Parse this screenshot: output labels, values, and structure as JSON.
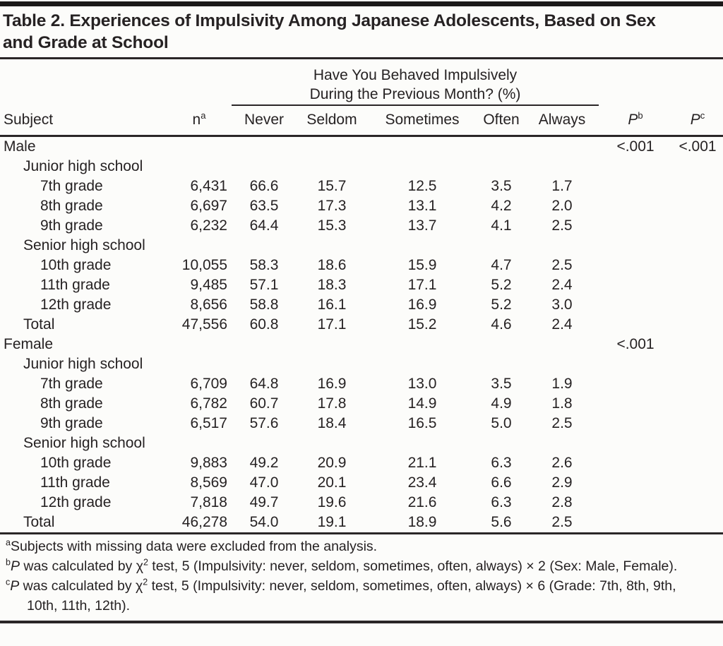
{
  "title": {
    "line1": "Table 2. Experiences of Impulsivity Among Japanese Adolescents, Based on Sex",
    "line2": "and Grade at School"
  },
  "table": {
    "group_header": {
      "line1": "Have You Behaved Impulsively",
      "line2": "During the Previous Month? (%)"
    },
    "columns": {
      "subject": "Subject",
      "n": "n",
      "n_sup": "a",
      "responses": [
        "Never",
        "Seldom",
        "Sometimes",
        "Often",
        "Always"
      ],
      "p": "P",
      "p_b_sup": "b",
      "p_c_sup": "c"
    },
    "rows": [
      {
        "label": "Male",
        "indent": 0,
        "n": "",
        "pct": [
          "",
          "",
          "",
          "",
          ""
        ],
        "p_b": "<.001",
        "p_c": "<.001"
      },
      {
        "label": "Junior high school",
        "indent": 1,
        "n": "",
        "pct": [
          "",
          "",
          "",
          "",
          ""
        ],
        "p_b": "",
        "p_c": ""
      },
      {
        "label": "7th grade",
        "indent": 2,
        "n": "6,431",
        "pct": [
          "66.6",
          "15.7",
          "12.5",
          "3.5",
          "1.7"
        ],
        "p_b": "",
        "p_c": ""
      },
      {
        "label": "8th grade",
        "indent": 2,
        "n": "6,697",
        "pct": [
          "63.5",
          "17.3",
          "13.1",
          "4.2",
          "2.0"
        ],
        "p_b": "",
        "p_c": ""
      },
      {
        "label": "9th grade",
        "indent": 2,
        "n": "6,232",
        "pct": [
          "64.4",
          "15.3",
          "13.7",
          "4.1",
          "2.5"
        ],
        "p_b": "",
        "p_c": ""
      },
      {
        "label": "Senior high school",
        "indent": 1,
        "n": "",
        "pct": [
          "",
          "",
          "",
          "",
          ""
        ],
        "p_b": "",
        "p_c": ""
      },
      {
        "label": "10th grade",
        "indent": 2,
        "n": "10,055",
        "pct": [
          "58.3",
          "18.6",
          "15.9",
          "4.7",
          "2.5"
        ],
        "p_b": "",
        "p_c": ""
      },
      {
        "label": "11th grade",
        "indent": 2,
        "n": "9,485",
        "pct": [
          "57.1",
          "18.3",
          "17.1",
          "5.2",
          "2.4"
        ],
        "p_b": "",
        "p_c": ""
      },
      {
        "label": "12th grade",
        "indent": 2,
        "n": "8,656",
        "pct": [
          "58.8",
          "16.1",
          "16.9",
          "5.2",
          "3.0"
        ],
        "p_b": "",
        "p_c": ""
      },
      {
        "label": "Total",
        "indent": 1,
        "n": "47,556",
        "pct": [
          "60.8",
          "17.1",
          "15.2",
          "4.6",
          "2.4"
        ],
        "p_b": "",
        "p_c": ""
      },
      {
        "label": "Female",
        "indent": 0,
        "n": "",
        "pct": [
          "",
          "",
          "",
          "",
          ""
        ],
        "p_b": "<.001",
        "p_c": ""
      },
      {
        "label": "Junior high school",
        "indent": 1,
        "n": "",
        "pct": [
          "",
          "",
          "",
          "",
          ""
        ],
        "p_b": "",
        "p_c": ""
      },
      {
        "label": "7th grade",
        "indent": 2,
        "n": "6,709",
        "pct": [
          "64.8",
          "16.9",
          "13.0",
          "3.5",
          "1.9"
        ],
        "p_b": "",
        "p_c": ""
      },
      {
        "label": "8th grade",
        "indent": 2,
        "n": "6,782",
        "pct": [
          "60.7",
          "17.8",
          "14.9",
          "4.9",
          "1.8"
        ],
        "p_b": "",
        "p_c": ""
      },
      {
        "label": "9th grade",
        "indent": 2,
        "n": "6,517",
        "pct": [
          "57.6",
          "18.4",
          "16.5",
          "5.0",
          "2.5"
        ],
        "p_b": "",
        "p_c": ""
      },
      {
        "label": "Senior high school",
        "indent": 1,
        "n": "",
        "pct": [
          "",
          "",
          "",
          "",
          ""
        ],
        "p_b": "",
        "p_c": ""
      },
      {
        "label": "10th grade",
        "indent": 2,
        "n": "9,883",
        "pct": [
          "49.2",
          "20.9",
          "21.1",
          "6.3",
          "2.6"
        ],
        "p_b": "",
        "p_c": ""
      },
      {
        "label": "11th grade",
        "indent": 2,
        "n": "8,569",
        "pct": [
          "47.0",
          "20.1",
          "23.4",
          "6.6",
          "2.9"
        ],
        "p_b": "",
        "p_c": ""
      },
      {
        "label": "12th grade",
        "indent": 2,
        "n": "7,818",
        "pct": [
          "49.7",
          "19.6",
          "21.6",
          "6.3",
          "2.8"
        ],
        "p_b": "",
        "p_c": ""
      },
      {
        "label": "Total",
        "indent": 1,
        "n": "46,278",
        "pct": [
          "54.0",
          "19.1",
          "18.9",
          "5.6",
          "2.5"
        ],
        "p_b": "",
        "p_c": ""
      }
    ]
  },
  "footnotes": {
    "a": {
      "marker": "a",
      "text": "Subjects with missing data were excluded from the analysis."
    },
    "b": {
      "marker": "b",
      "p": "P",
      "mid": " was calculated by χ",
      "chi_sup": "2",
      "rest": " test, 5 (Impulsivity: never, seldom, sometimes, often, always) × 2 (Sex: Male, Female)."
    },
    "c": {
      "marker": "c",
      "p": "P",
      "mid": " was calculated by χ",
      "chi_sup": "2",
      "rest": " test, 5 (Impulsivity: never, seldom, sometimes, often, always) × 6 (Grade: 7th, 8th, 9th, 10th, 11th, 12th)."
    }
  },
  "colors": {
    "text": "#262223",
    "rule": "#2a2627",
    "background": "#fcfcfa"
  }
}
